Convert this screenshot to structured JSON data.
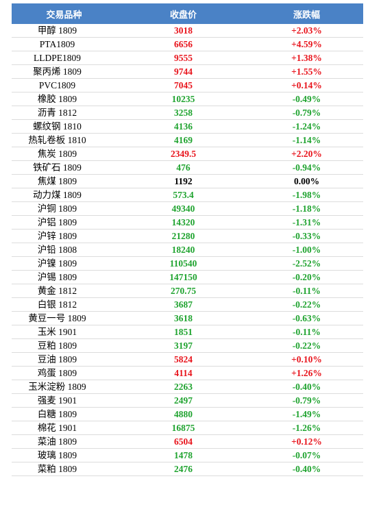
{
  "table": {
    "header": [
      "交易品种",
      "收盘价",
      "涨跌幅"
    ],
    "rows": [
      {
        "name": "甲醇 1809",
        "price": "3018",
        "change": "+2.03%",
        "color": "#e8141c"
      },
      {
        "name": "PTA1809",
        "price": "6656",
        "change": "+4.59%",
        "color": "#e8141c"
      },
      {
        "name": "LLDPE1809",
        "price": "9555",
        "change": "+1.38%",
        "color": "#e8141c"
      },
      {
        "name": "聚丙烯 1809",
        "price": "9744",
        "change": "+1.55%",
        "color": "#e8141c"
      },
      {
        "name": "PVC1809",
        "price": "7045",
        "change": "+0.14%",
        "color": "#e8141c"
      },
      {
        "name": "橡胶 1809",
        "price": "10235",
        "change": "-0.49%",
        "color": "#1fa32f"
      },
      {
        "name": "沥青 1812",
        "price": "3258",
        "change": "-0.79%",
        "color": "#1fa32f"
      },
      {
        "name": "螺纹钢 1810",
        "price": "4136",
        "change": "-1.24%",
        "color": "#1fa32f"
      },
      {
        "name": "热轧卷板 1810",
        "price": "4169",
        "change": "-1.14%",
        "color": "#1fa32f"
      },
      {
        "name": "焦炭 1809",
        "price": "2349.5",
        "change": "+2.20%",
        "color": "#e8141c"
      },
      {
        "name": "铁矿石 1809",
        "price": "476",
        "change": "-0.94%",
        "color": "#1fa32f"
      },
      {
        "name": "焦煤 1809",
        "price": "1192",
        "change": "0.00%",
        "color": "#000000"
      },
      {
        "name": "动力煤 1809",
        "price": "573.4",
        "change": "-1.98%",
        "color": "#1fa32f"
      },
      {
        "name": "沪铜 1809",
        "price": "49340",
        "change": "-1.18%",
        "color": "#1fa32f"
      },
      {
        "name": "沪铝 1809",
        "price": "14320",
        "change": "-1.31%",
        "color": "#1fa32f"
      },
      {
        "name": "沪锌 1809",
        "price": "21280",
        "change": "-0.33%",
        "color": "#1fa32f"
      },
      {
        "name": "沪铅 1808",
        "price": "18240",
        "change": "-1.00%",
        "color": "#1fa32f"
      },
      {
        "name": "沪镍 1809",
        "price": "110540",
        "change": "-2.52%",
        "color": "#1fa32f"
      },
      {
        "name": "沪锡 1809",
        "price": "147150",
        "change": "-0.20%",
        "color": "#1fa32f"
      },
      {
        "name": "黄金 1812",
        "price": "270.75",
        "change": "-0.11%",
        "color": "#1fa32f"
      },
      {
        "name": "白银 1812",
        "price": "3687",
        "change": "-0.22%",
        "color": "#1fa32f"
      },
      {
        "name": "黄豆一号 1809",
        "price": "3618",
        "change": "-0.63%",
        "color": "#1fa32f"
      },
      {
        "name": "玉米 1901",
        "price": "1851",
        "change": "-0.11%",
        "color": "#1fa32f"
      },
      {
        "name": "豆粕 1809",
        "price": "3197",
        "change": "-0.22%",
        "color": "#1fa32f"
      },
      {
        "name": "豆油 1809",
        "price": "5824",
        "change": "+0.10%",
        "color": "#e8141c"
      },
      {
        "name": "鸡蛋 1809",
        "price": "4114",
        "change": "+1.26%",
        "color": "#e8141c"
      },
      {
        "name": "玉米淀粉 1809",
        "price": "2263",
        "change": "-0.40%",
        "color": "#1fa32f"
      },
      {
        "name": "强麦 1901",
        "price": "2497",
        "change": "-0.79%",
        "color": "#1fa32f"
      },
      {
        "name": "白糖 1809",
        "price": "4880",
        "change": "-1.49%",
        "color": "#1fa32f"
      },
      {
        "name": "棉花 1901",
        "price": "16875",
        "change": "-1.26%",
        "color": "#1fa32f"
      },
      {
        "name": "菜油 1809",
        "price": "6504",
        "change": "+0.12%",
        "color": "#e8141c"
      },
      {
        "name": "玻璃 1809",
        "price": "1478",
        "change": "-0.07%",
        "color": "#1fa32f"
      },
      {
        "name": "菜粕 1809",
        "price": "2476",
        "change": "-0.40%",
        "color": "#1fa32f"
      }
    ]
  }
}
